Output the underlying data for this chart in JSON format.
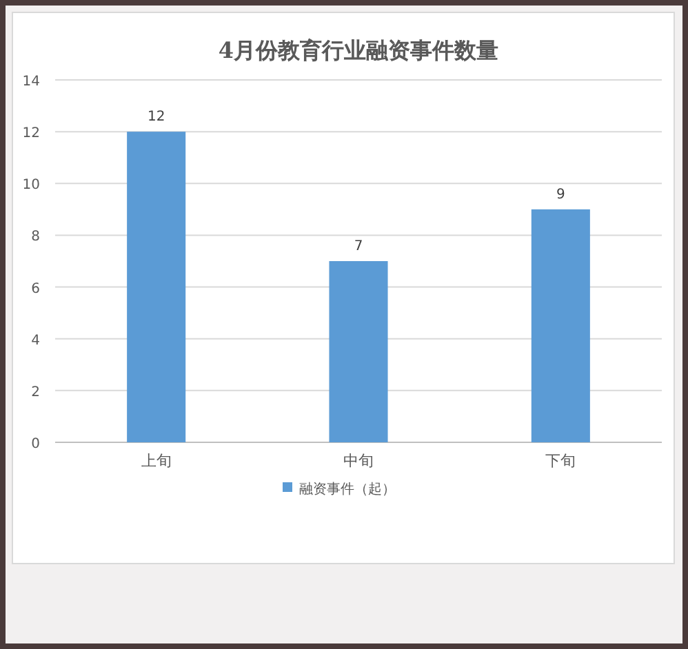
{
  "chart_data": {
    "type": "bar",
    "title": "4月份教育行业融资事件数量",
    "categories": [
      "上旬",
      "中旬",
      "下旬"
    ],
    "series": [
      {
        "name": "融资事件（起）",
        "color": "#5b9bd5",
        "values": [
          12,
          7,
          9
        ]
      }
    ],
    "ylim": [
      0,
      14
    ],
    "yticks": [
      0,
      2,
      4,
      6,
      8,
      10,
      12,
      14
    ],
    "grid": "y",
    "legend": "bottom",
    "data_labels": true
  }
}
